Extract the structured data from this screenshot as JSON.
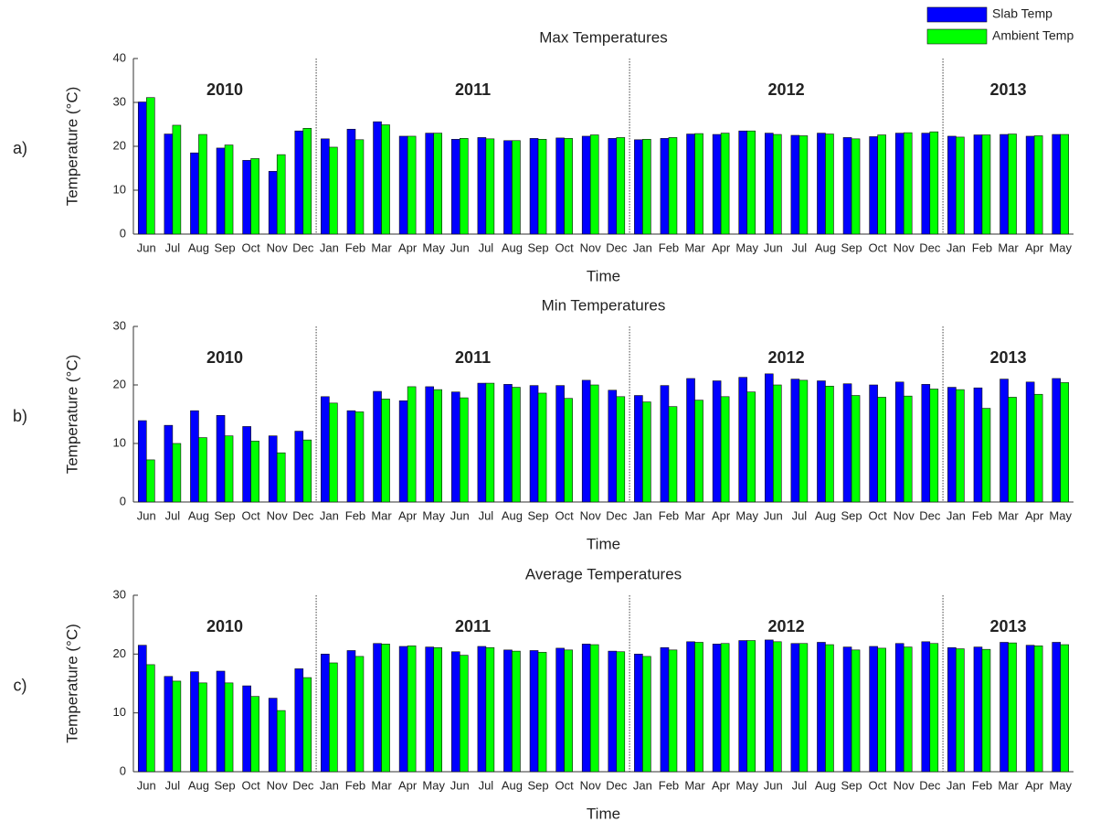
{
  "chart_data": [
    {
      "type": "bar",
      "panel_label": "a)",
      "title": "Max Temperatures",
      "xlabel": "Time",
      "ylabel": "Temperature (°C)",
      "categories": [
        "Jun",
        "Jul",
        "Aug",
        "Sep",
        "Oct",
        "Nov",
        "Dec",
        "Jan",
        "Feb",
        "Mar",
        "Apr",
        "May",
        "Jun",
        "Jul",
        "Aug",
        "Sep",
        "Oct",
        "Nov",
        "Dec",
        "Jan",
        "Feb",
        "Mar",
        "Apr",
        "May",
        "Jun",
        "Jul",
        "Aug",
        "Sep",
        "Oct",
        "Nov",
        "Dec",
        "Jan",
        "Feb",
        "Mar",
        "Apr",
        "May"
      ],
      "year_labels": [
        "2010",
        "2011",
        "2012",
        "2013"
      ],
      "series": [
        {
          "name": "Slab Temp",
          "color": "#0000ff",
          "values": [
            30.1,
            22.8,
            18.5,
            19.6,
            16.8,
            14.3,
            23.5,
            21.7,
            23.9,
            25.6,
            22.3,
            23.0,
            21.6,
            22.0,
            21.3,
            21.8,
            21.9,
            22.3,
            21.8,
            21.5,
            21.8,
            22.8,
            22.7,
            23.5,
            23.0,
            22.5,
            23.0,
            22.0,
            22.2,
            23.0,
            23.0,
            22.3,
            22.6,
            22.7,
            22.3,
            22.7
          ]
        },
        {
          "name": "Ambient Temp",
          "color": "#00ff00",
          "values": [
            31.1,
            24.8,
            22.7,
            20.3,
            17.2,
            18.1,
            24.1,
            19.8,
            21.5,
            24.9,
            22.3,
            23.0,
            21.8,
            21.7,
            21.3,
            21.6,
            21.8,
            22.6,
            22.0,
            21.6,
            22.0,
            22.9,
            23.0,
            23.5,
            22.7,
            22.4,
            22.8,
            21.7,
            22.6,
            23.1,
            23.3,
            22.1,
            22.6,
            22.8,
            22.4,
            22.7
          ]
        }
      ],
      "ylim": [
        0,
        40
      ],
      "yticks": [
        0,
        10,
        20,
        30,
        40
      ]
    },
    {
      "type": "bar",
      "panel_label": "b)",
      "title": "Min Temperatures",
      "xlabel": "Time",
      "ylabel": "Temperature (°C)",
      "categories": [
        "Jun",
        "Jul",
        "Aug",
        "Sep",
        "Oct",
        "Nov",
        "Dec",
        "Jan",
        "Feb",
        "Mar",
        "Apr",
        "May",
        "Jun",
        "Jul",
        "Aug",
        "Sep",
        "Oct",
        "Nov",
        "Dec",
        "Jan",
        "Feb",
        "Mar",
        "Apr",
        "May",
        "Jun",
        "Jul",
        "Aug",
        "Sep",
        "Oct",
        "Nov",
        "Dec",
        "Jan",
        "Feb",
        "Mar",
        "Apr",
        "May"
      ],
      "year_labels": [
        "2010",
        "2011",
        "2012",
        "2013"
      ],
      "series": [
        {
          "color": "#0000ff",
          "values": [
            13.9,
            13.1,
            15.6,
            14.8,
            12.9,
            11.3,
            12.1,
            18.0,
            15.6,
            18.9,
            17.3,
            19.7,
            18.8,
            20.3,
            20.1,
            19.9,
            19.9,
            20.8,
            19.1,
            18.2,
            19.9,
            21.1,
            20.7,
            21.3,
            21.9,
            21.0,
            20.7,
            20.2,
            20.0,
            20.5,
            20.1,
            19.6,
            19.5,
            21.0,
            20.5,
            21.1
          ]
        },
        {
          "color": "#00ff00",
          "values": [
            7.2,
            10.0,
            11.0,
            11.3,
            10.4,
            8.4,
            10.6,
            16.9,
            15.4,
            17.6,
            19.7,
            19.2,
            17.8,
            20.3,
            19.6,
            18.6,
            17.7,
            20.0,
            18.0,
            17.1,
            16.3,
            17.4,
            18.0,
            18.8,
            20.0,
            20.8,
            19.8,
            18.2,
            17.9,
            18.1,
            19.3,
            19.2,
            16.0,
            17.9,
            18.4,
            20.4
          ]
        }
      ],
      "ylim": [
        0,
        30
      ],
      "yticks": [
        0,
        10,
        20,
        30
      ]
    },
    {
      "type": "bar",
      "panel_label": "c)",
      "title": "Average Temperatures",
      "xlabel": "Time",
      "ylabel": "Temperature (°C)",
      "categories": [
        "Jun",
        "Jul",
        "Aug",
        "Sep",
        "Oct",
        "Nov",
        "Dec",
        "Jan",
        "Feb",
        "Mar",
        "Apr",
        "May",
        "Jun",
        "Jul",
        "Aug",
        "Sep",
        "Oct",
        "Nov",
        "Dec",
        "Jan",
        "Feb",
        "Mar",
        "Apr",
        "May",
        "Jun",
        "Jul",
        "Aug",
        "Sep",
        "Oct",
        "Nov",
        "Dec",
        "Jan",
        "Feb",
        "Mar",
        "Apr",
        "May"
      ],
      "year_labels": [
        "2010",
        "2011",
        "2012",
        "2013"
      ],
      "series": [
        {
          "color": "#0000ff",
          "values": [
            21.5,
            16.2,
            17.0,
            17.1,
            14.6,
            12.5,
            17.5,
            20.0,
            20.6,
            21.8,
            21.3,
            21.2,
            20.4,
            21.3,
            20.7,
            20.6,
            21.0,
            21.7,
            20.5,
            20.0,
            21.1,
            22.1,
            21.7,
            22.3,
            22.4,
            21.8,
            22.0,
            21.2,
            21.3,
            21.8,
            22.1,
            21.1,
            21.2,
            22.0,
            21.5,
            22.0
          ]
        },
        {
          "color": "#00ff00",
          "values": [
            18.2,
            15.4,
            15.1,
            15.1,
            12.8,
            10.4,
            16.0,
            18.5,
            19.6,
            21.7,
            21.4,
            21.1,
            19.8,
            21.1,
            20.5,
            20.3,
            20.7,
            21.6,
            20.4,
            19.6,
            20.7,
            22.0,
            21.8,
            22.3,
            22.1,
            21.8,
            21.6,
            20.7,
            21.0,
            21.2,
            21.8,
            20.9,
            20.8,
            21.9,
            21.4,
            21.6
          ]
        }
      ],
      "ylim": [
        0,
        30
      ],
      "yticks": [
        0,
        10,
        20,
        30
      ]
    }
  ]
}
